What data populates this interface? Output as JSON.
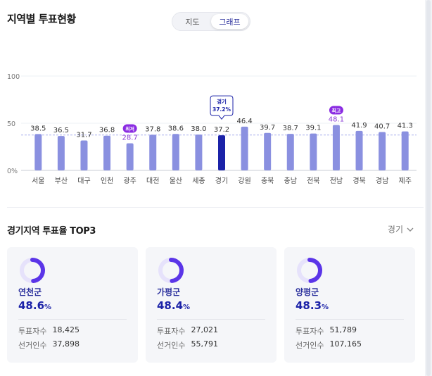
{
  "section_title": "지역별 투표현황",
  "view_toggle": {
    "options": [
      "지도",
      "그래프"
    ],
    "selected": "그래프"
  },
  "chart_data": {
    "type": "bar",
    "categories": [
      "서울",
      "부산",
      "대구",
      "인천",
      "광주",
      "대전",
      "울산",
      "세종",
      "경기",
      "강원",
      "충북",
      "충남",
      "전북",
      "전남",
      "경북",
      "경남",
      "제주"
    ],
    "values": [
      38.5,
      36.5,
      31.7,
      36.8,
      28.7,
      37.8,
      38.6,
      38.0,
      37.2,
      46.4,
      39.7,
      38.7,
      39.1,
      48.1,
      41.9,
      40.7,
      41.3
    ],
    "value_labels": [
      "38.5",
      "36.5",
      "31.7",
      "36.8",
      "28.7",
      "37.8",
      "38.6",
      "38.0",
      "37.2",
      "46.4",
      "39.7",
      "38.7",
      "39.1",
      "48.1",
      "41.9",
      "40.7",
      "41.3"
    ],
    "ylim": [
      0,
      100
    ],
    "yticks": [
      "0%",
      "50",
      "100"
    ],
    "average_line": 37.5,
    "selected_index": 8,
    "selected_tooltip": {
      "name": "경기",
      "value": "37.2%"
    },
    "min_index": 4,
    "min_badge": "최저",
    "max_index": 13,
    "max_badge": "최고",
    "colors": {
      "bar": "#8a90e0",
      "selected": "#1b22a8",
      "highlight_text": "#8a3bd6",
      "badge": "#8a2be2",
      "avg_line": "#aab0ee"
    }
  },
  "top3": {
    "title": "경기지역 투표율 TOP3",
    "region_select": "경기",
    "cards": [
      {
        "name": "연천군",
        "rate": "48.6",
        "unit": "%",
        "rate_fraction": 0.486,
        "voters_label": "투표자수",
        "voters": "18,425",
        "electorate_label": "선거인수",
        "electorate": "37,898"
      },
      {
        "name": "가평군",
        "rate": "48.4",
        "unit": "%",
        "rate_fraction": 0.484,
        "voters_label": "투표자수",
        "voters": "27,021",
        "electorate_label": "선거인수",
        "electorate": "55,791"
      },
      {
        "name": "양평군",
        "rate": "48.3",
        "unit": "%",
        "rate_fraction": 0.483,
        "voters_label": "투표자수",
        "voters": "51,789",
        "electorate_label": "선거인수",
        "electorate": "107,165"
      }
    ]
  }
}
